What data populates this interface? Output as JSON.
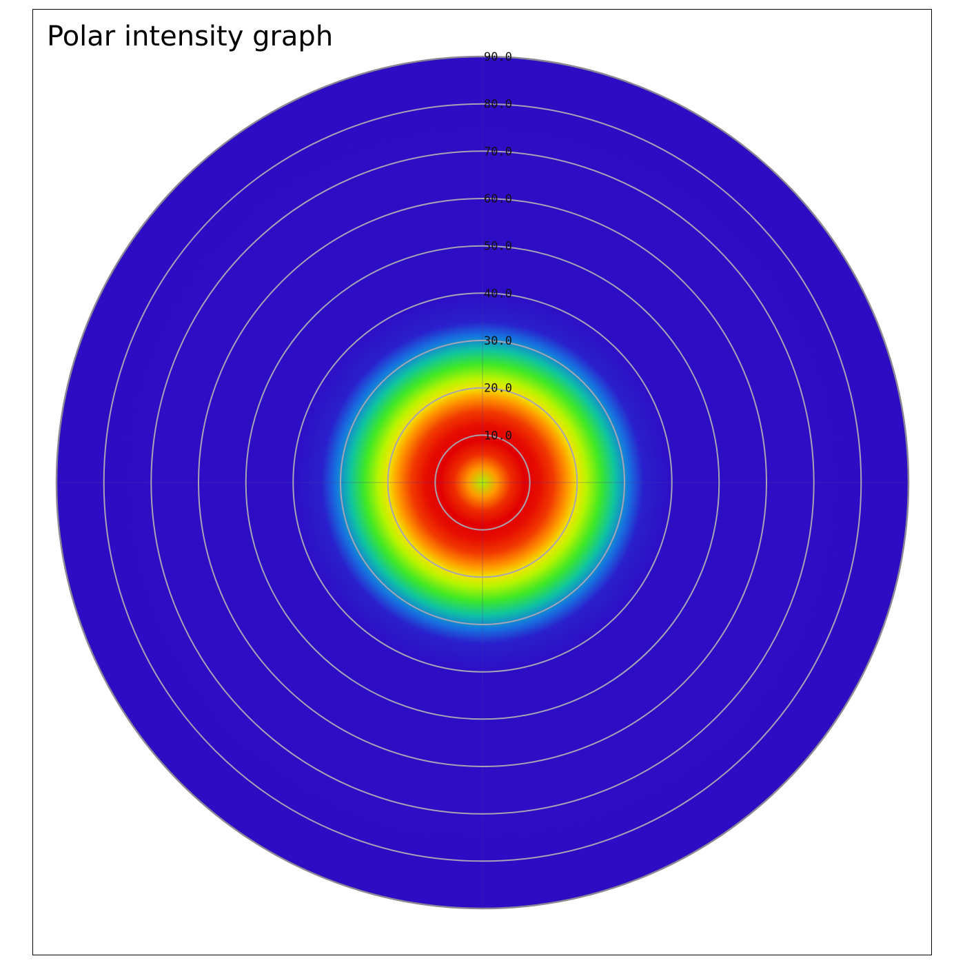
{
  "chart_data": {
    "type": "heatmap",
    "subtype": "polar",
    "title": "Polar intensity graph",
    "radial_axis": {
      "range": [
        0,
        90
      ],
      "ticks": [
        10,
        20,
        30,
        40,
        50,
        60,
        70,
        80,
        90
      ],
      "tick_labels": [
        "10.0",
        "20.0",
        "30.0",
        "40.0",
        "50.0",
        "60.0",
        "70.0",
        "80.0",
        "90.0"
      ]
    },
    "grid": true,
    "colormap": "jet",
    "background_color": "#2e0cc4",
    "grid_color": "#a7a4b4",
    "intensity_profile": {
      "r": [
        0,
        3,
        6,
        9,
        12,
        15,
        18,
        20,
        22,
        25,
        28,
        31,
        34,
        40,
        90
      ],
      "value": [
        0.62,
        0.78,
        0.9,
        0.97,
        0.95,
        0.88,
        0.78,
        0.72,
        0.64,
        0.5,
        0.36,
        0.24,
        0.14,
        0.06,
        0.05
      ]
    },
    "colormap_stops": [
      {
        "value": 0.05,
        "color": "#2e0cc4"
      },
      {
        "value": 0.14,
        "color": "#2a20cc"
      },
      {
        "value": 0.24,
        "color": "#1673e0"
      },
      {
        "value": 0.36,
        "color": "#0fc4a0"
      },
      {
        "value": 0.5,
        "color": "#3fe826"
      },
      {
        "value": 0.64,
        "color": "#b8f400"
      },
      {
        "value": 0.72,
        "color": "#f0e400"
      },
      {
        "value": 0.78,
        "color": "#ff9a00"
      },
      {
        "value": 0.88,
        "color": "#f23a00"
      },
      {
        "value": 0.97,
        "color": "#e10000"
      }
    ]
  }
}
